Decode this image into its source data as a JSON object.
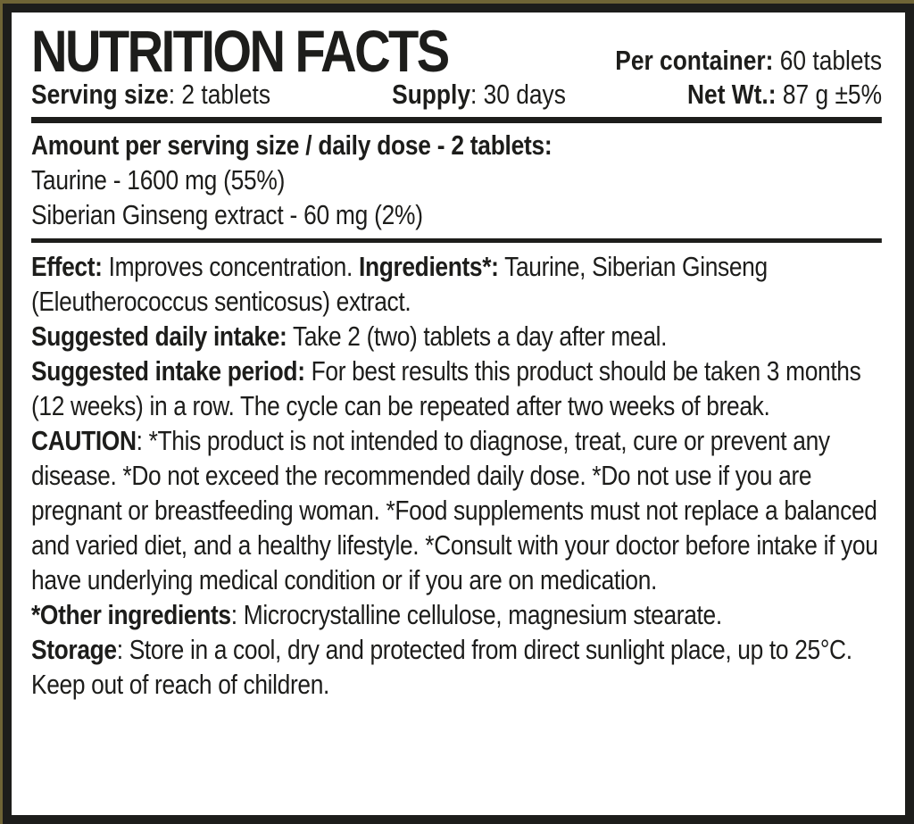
{
  "colors": {
    "background_olive": "#6f6436",
    "border_black": "#1d1d1b",
    "paper_white": "#ffffff",
    "text": "#1d1d1b"
  },
  "header": {
    "title": "NUTRITION FACTS",
    "per_container_label": "Per container:",
    "per_container_value": " 60 tablets",
    "serving_size_label": "Serving size",
    "serving_size_value": ": 2 tablets",
    "supply_label": "Supply",
    "supply_value": ": 30 days",
    "net_wt_label": "Net Wt.:",
    "net_wt_value": " 87 g ±5%"
  },
  "amounts": {
    "heading": "Amount per serving size / daily dose - 2 tablets:",
    "row1": "Taurine - 1600 mg (55%)",
    "row2": "Siberian Ginseng extract - 60 mg (2%)"
  },
  "details": {
    "effect_label": "Effect:",
    "effect_text": " Improves concentration. ",
    "ingredients_label": "Ingredients*:",
    "ingredients_text": " Taurine, Siberian Ginseng (Eleutherococcus senticosus) extract.",
    "daily_intake_label": "Suggested daily intake:",
    "daily_intake_text": " Take 2 (two) tablets a day after meal.",
    "intake_period_label": "Suggested intake period:",
    "intake_period_text": " For best results this product should be taken 3 months (12 weeks) in a row. The cycle can be repeated after two weeks of break.",
    "caution_label": "CAUTION",
    "caution_text": ": *This product is not intended to diagnose, treat, cure or prevent any disease. *Do not exceed the recommended daily dose. *Do not use if you are pregnant or breastfeeding woman. *Food supplements must not replace a balanced and varied diet, and a healthy lifestyle. *Consult with your doctor before intake if you have underlying medical condition or if you are on medication.",
    "other_ingredients_label": "*Other ingredients",
    "other_ingredients_text": ": Microcrystalline cellulose, magnesium stearate.",
    "storage_label": "Storage",
    "storage_text": ": Store in a cool, dry and protected from direct sunlight place, up to 25°C. Keep out of reach of children."
  }
}
